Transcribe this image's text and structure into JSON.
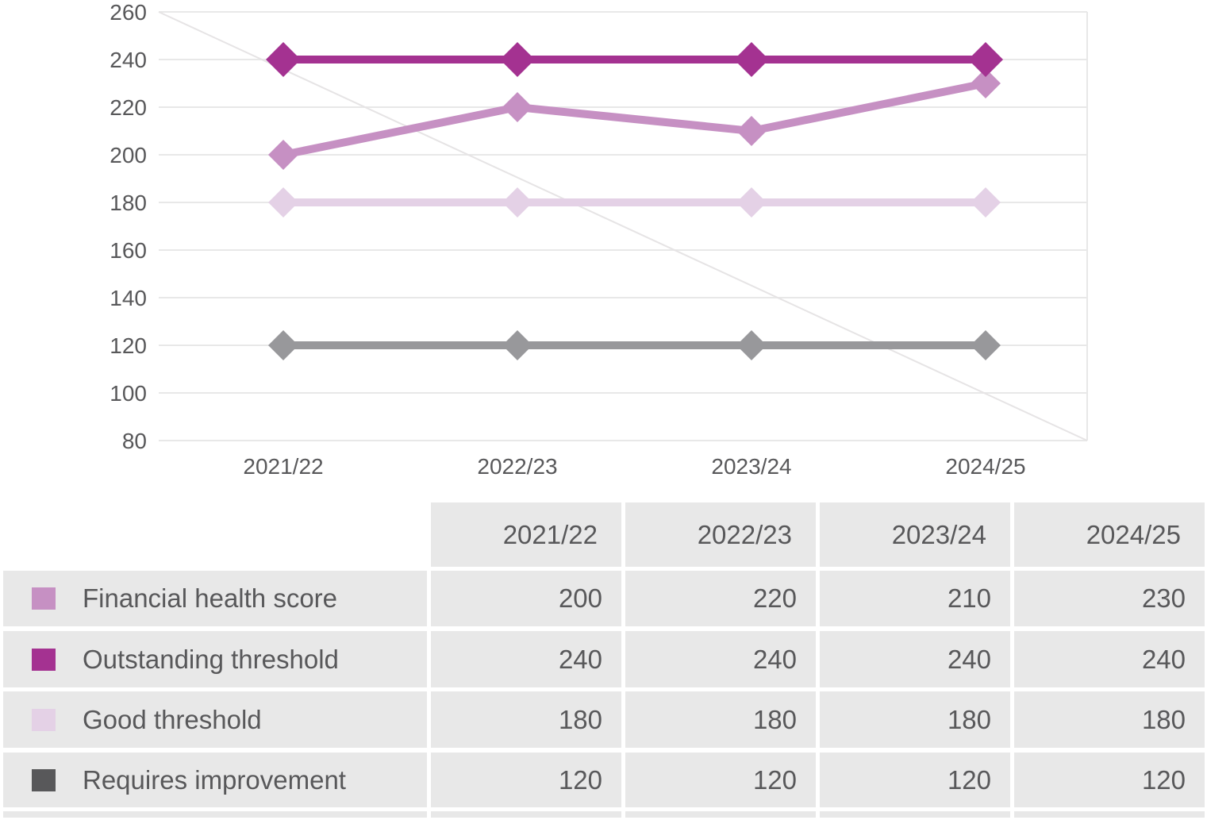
{
  "chart_data": {
    "type": "line",
    "title": "",
    "xlabel": "",
    "ylabel": "",
    "categories": [
      "2021/22",
      "2022/23",
      "2023/24",
      "2024/25"
    ],
    "series": [
      {
        "name": "Financial health score",
        "color": "#C690C3",
        "marker": "diamond",
        "values": [
          200,
          220,
          210,
          230
        ]
      },
      {
        "name": "Outstanding threshold",
        "color": "#A43291",
        "marker": "diamond",
        "values": [
          240,
          240,
          240,
          240
        ]
      },
      {
        "name": "Good threshold",
        "color": "#E4D1E6",
        "marker": "diamond",
        "values": [
          180,
          180,
          180,
          180
        ]
      },
      {
        "name": "Requires improvement",
        "color": "#98989B",
        "marker": "diamond",
        "values": [
          120,
          120,
          120,
          120
        ]
      }
    ],
    "ylim": [
      80,
      260
    ],
    "yticks": [
      260,
      240,
      220,
      200,
      180,
      160,
      140,
      120,
      100,
      80
    ],
    "grid": true,
    "has_right_border": true,
    "has_diagonal_reference_line": true,
    "legend_position": "table-below"
  },
  "table": {
    "headers": [
      "2021/22",
      "2022/23",
      "2023/24",
      "2024/25"
    ],
    "rows": [
      {
        "label": "Financial health score",
        "swatch_color": "#C690C3",
        "values": [
          "200",
          "220",
          "210",
          "230"
        ]
      },
      {
        "label": "Outstanding threshold",
        "swatch_color": "#A43291",
        "values": [
          "240",
          "240",
          "240",
          "240"
        ]
      },
      {
        "label": "Good threshold",
        "swatch_color": "#E4D1E6",
        "values": [
          "180",
          "180",
          "180",
          "180"
        ]
      },
      {
        "label": "Requires improvement",
        "swatch_color": "#58585A",
        "values": [
          "120",
          "120",
          "120",
          "120"
        ]
      }
    ]
  },
  "colors": {
    "grid": "#E8E8E8",
    "diagonal": "#E6E4E5",
    "axis_text": "#58585A",
    "table_cell_bg": "#E8E8E8",
    "table_text": "#58585A"
  }
}
